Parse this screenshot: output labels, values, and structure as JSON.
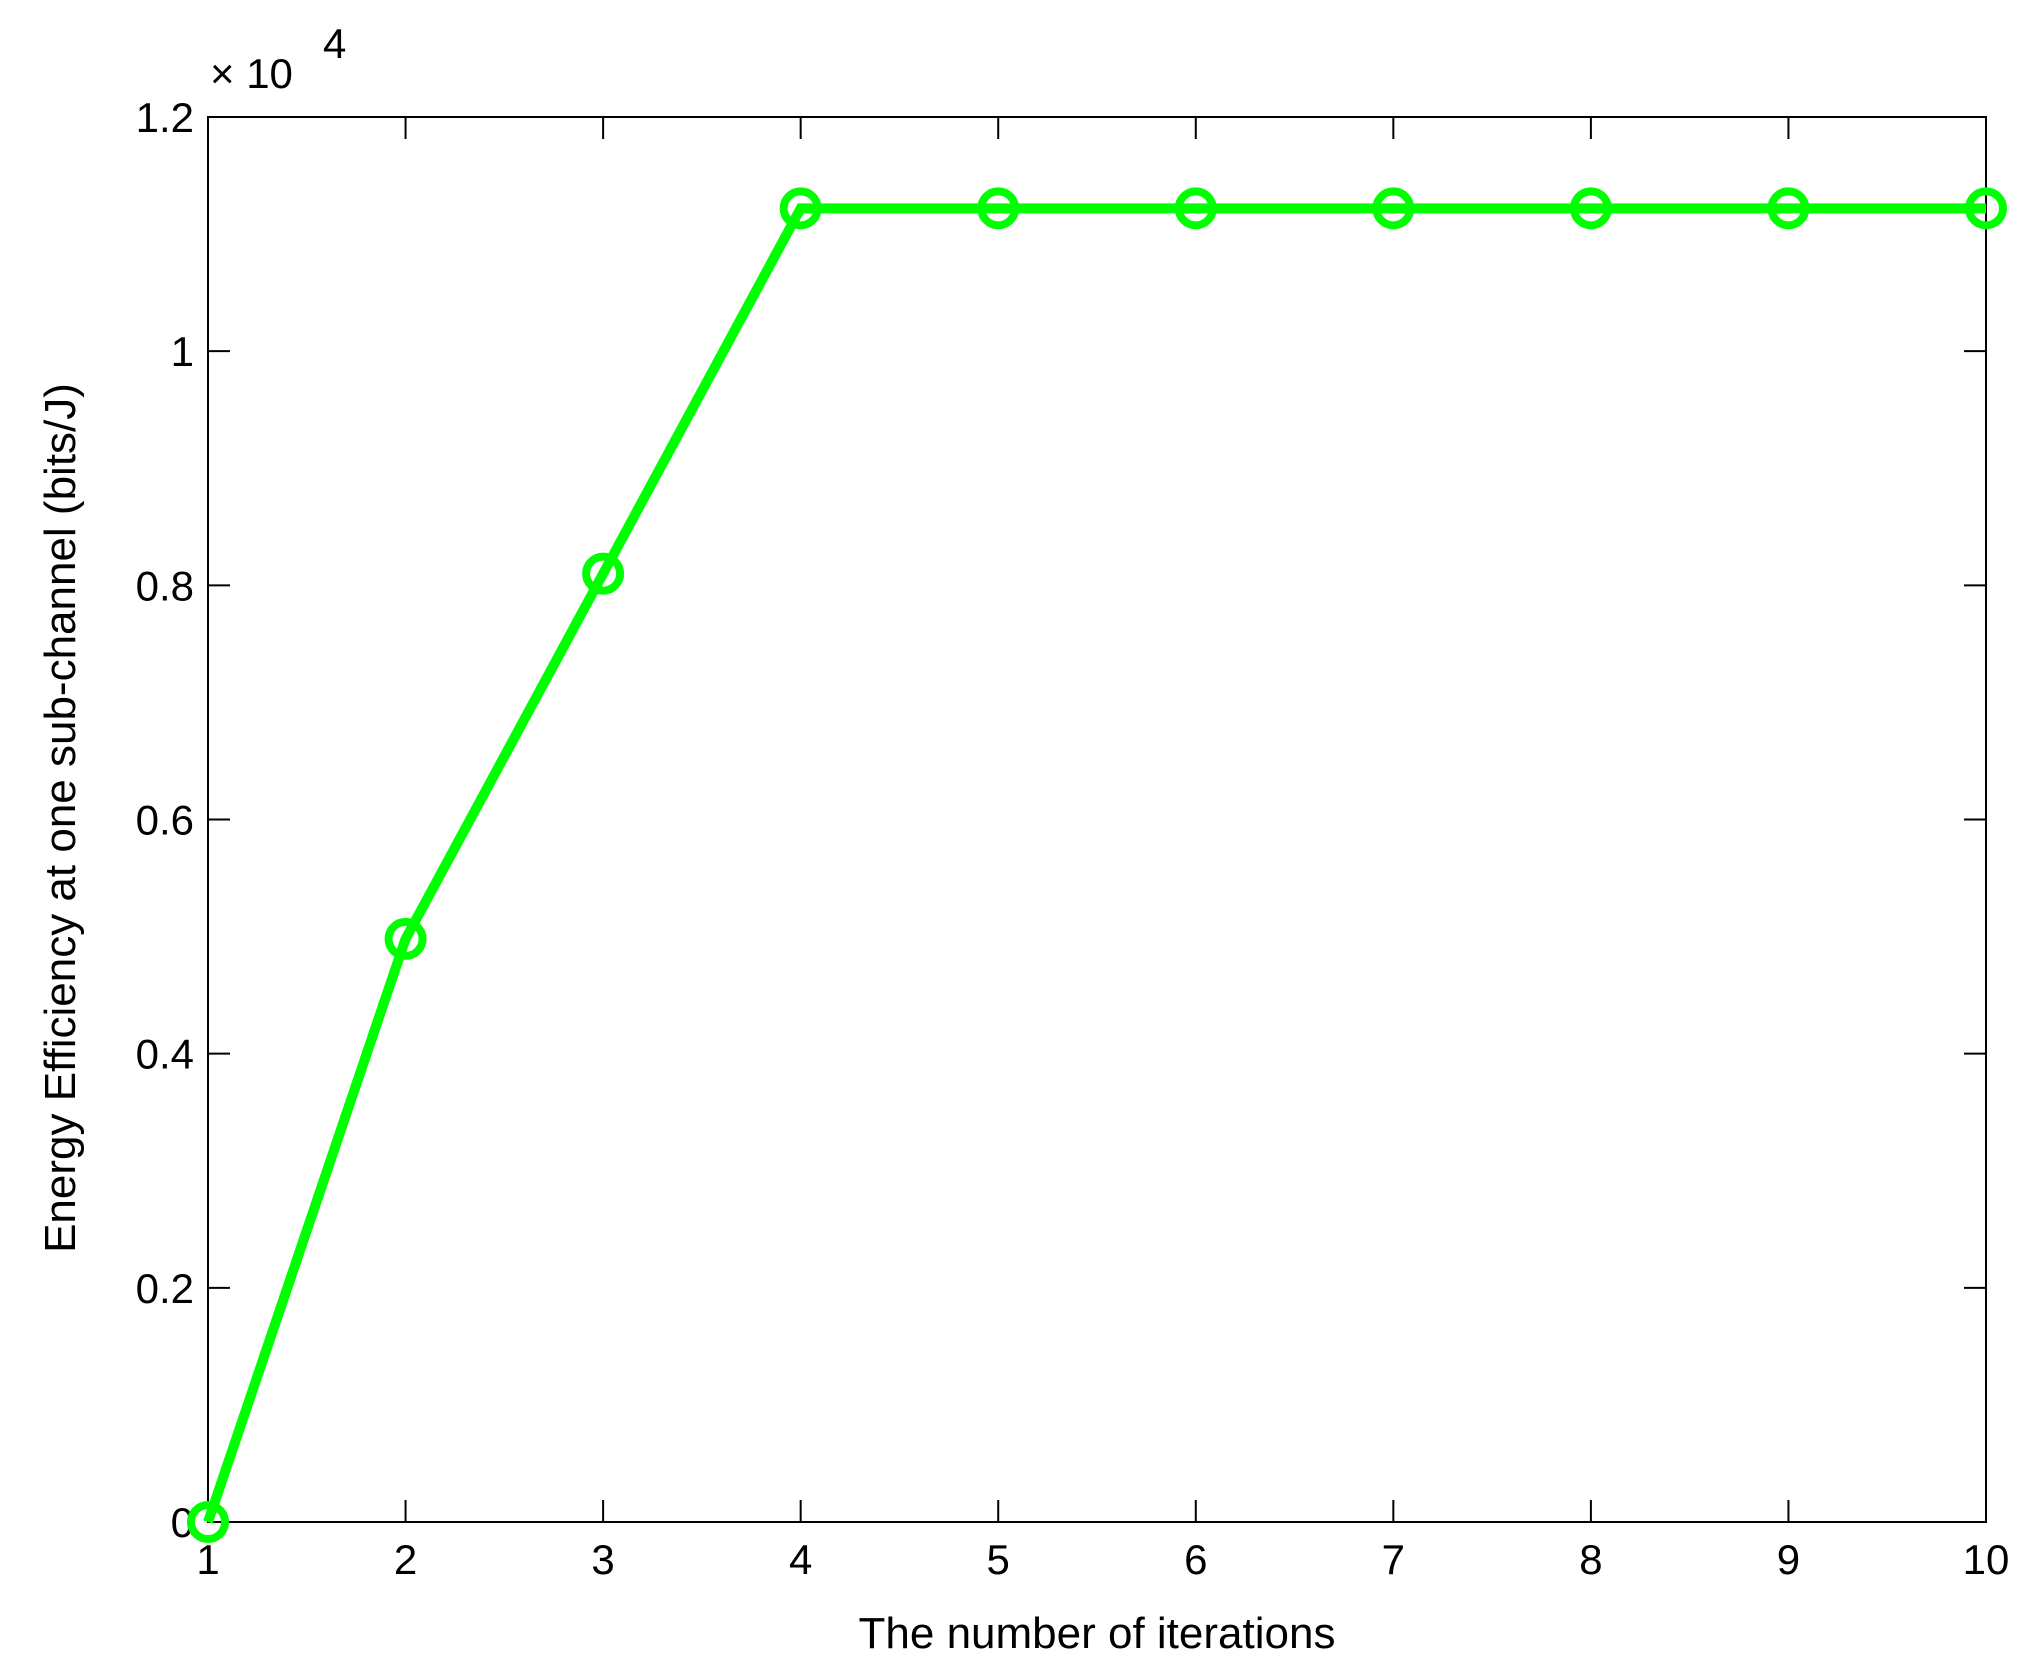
{
  "chart_data": {
    "type": "line",
    "title": "",
    "xlabel": "The number of iterations",
    "ylabel": "Energy  Efficiency  at one sub-channel (bits/J)",
    "y_exponent": {
      "base": "× 10",
      "power": "4"
    },
    "xlim": [
      1,
      10
    ],
    "ylim": [
      0,
      1.2
    ],
    "xticks": [
      "1",
      "2",
      "3",
      "4",
      "5",
      "6",
      "7",
      "8",
      "9",
      "10"
    ],
    "yticks": [
      "0",
      "0.2",
      "0.4",
      "0.6",
      "0.8",
      "1",
      "1.2"
    ],
    "grid": false,
    "series": [
      {
        "x": [
          1,
          2,
          3,
          4,
          5,
          6,
          7,
          8,
          9,
          10
        ],
        "y": [
          0,
          0.498,
          0.81,
          1.122,
          1.122,
          1.122,
          1.122,
          1.122,
          1.122,
          1.122
        ],
        "color": "#00ff00",
        "marker": "circle"
      }
    ]
  }
}
